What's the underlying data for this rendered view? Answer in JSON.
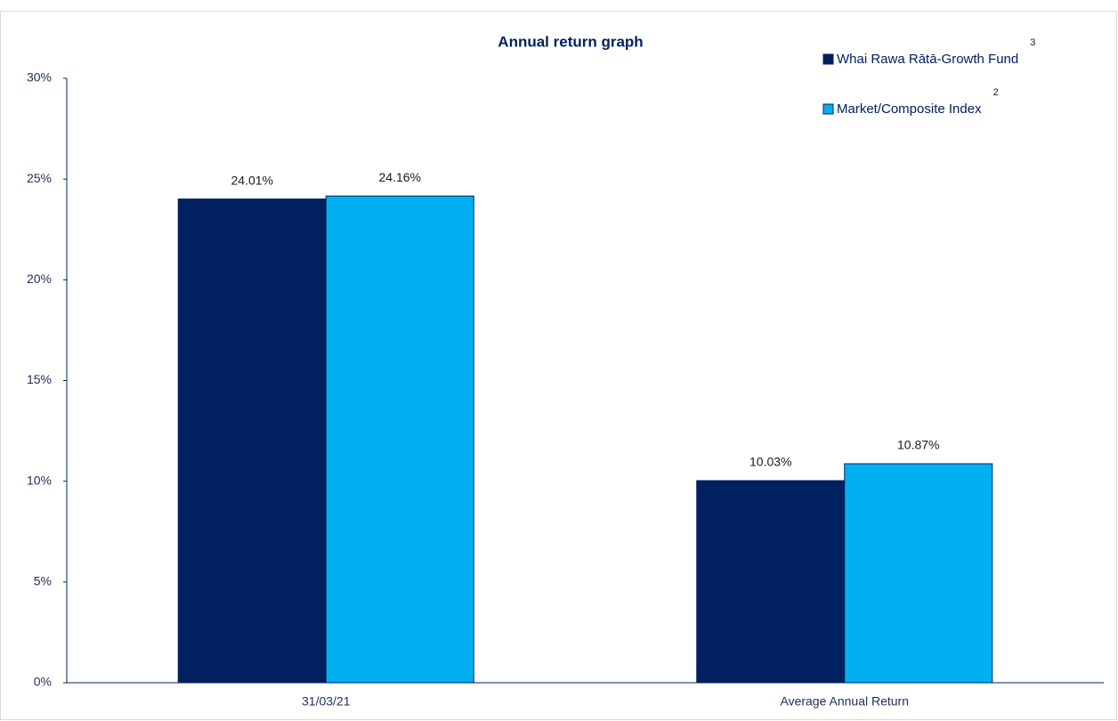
{
  "chart_data": {
    "type": "bar",
    "title": "Annual return graph",
    "categories": [
      "31/03/21",
      "Average Annual Return"
    ],
    "series": [
      {
        "name": "Whai Rawa Rātā-Growth Fund",
        "footnote": "3",
        "color": "#002060",
        "values": [
          24.01,
          10.03
        ],
        "value_labels": [
          "24.01%",
          "10.03%"
        ]
      },
      {
        "name": "Market/Composite Index",
        "footnote": "2",
        "color": "#00b0f0",
        "values": [
          24.16,
          10.87
        ],
        "value_labels": [
          "24.16%",
          "10.87%"
        ]
      }
    ],
    "ylim": [
      0,
      30
    ],
    "yticks": [
      {
        "value": 0,
        "label": "0%"
      },
      {
        "value": 5,
        "label": "5%"
      },
      {
        "value": 10,
        "label": "10%"
      },
      {
        "value": 15,
        "label": "15%"
      },
      {
        "value": 20,
        "label": "20%"
      },
      {
        "value": 25,
        "label": "25%"
      },
      {
        "value": 30,
        "label": "30%"
      }
    ],
    "grid": false,
    "legend": "top-right"
  }
}
